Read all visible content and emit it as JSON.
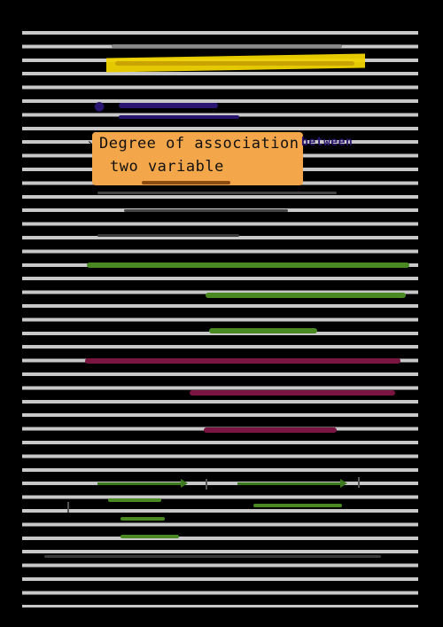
{
  "heading": {
    "line1": "Degree of association",
    "line1_suffix": "between",
    "line2": "two variable"
  },
  "colors": {
    "rule_line": "#c8c8c8",
    "highlight_yellow": "#f0d400",
    "highlight_orange": "#f4a64a",
    "ink_purple": "#2a1670",
    "ink_green": "#4b8a22",
    "ink_maroon": "#7a1440"
  }
}
